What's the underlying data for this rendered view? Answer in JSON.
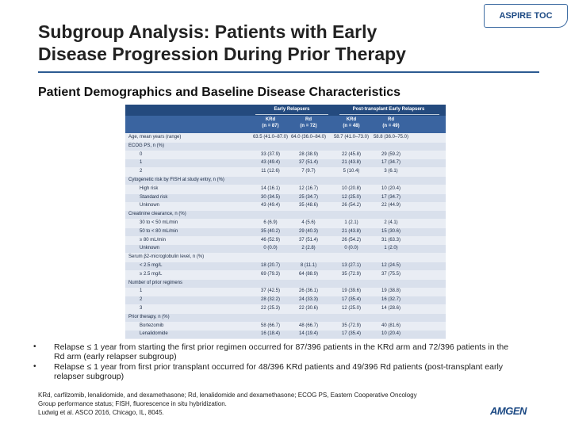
{
  "badge": "ASPIRE TOC",
  "title_line1": "Subgroup Analysis: Patients with Early",
  "title_line2": "Disease Progression During Prior Therapy",
  "subtitle": "Patient Demographics and Baseline Disease Characteristics",
  "table": {
    "group1": "Early Relapsers",
    "group2": "Post-transplant Early Relapsers",
    "columns": [
      {
        "arm": "KRd",
        "n": "(n = 87)"
      },
      {
        "arm": "Rd",
        "n": "(n = 72)"
      },
      {
        "arm": "KRd",
        "n": "(n = 48)"
      },
      {
        "arm": "Rd",
        "n": "(n = 49)"
      }
    ],
    "rows": [
      {
        "label": "Age, mean years (range)",
        "indent": false,
        "cells": [
          "63.5 (41.0–87.0)",
          "64.0 (36.0–84.0)",
          "58.7 (41.0–73.0)",
          "58.8 (36.0–75.0)"
        ]
      },
      {
        "label": "ECOG PS, n (%)",
        "indent": false,
        "cells": [
          "",
          "",
          "",
          ""
        ]
      },
      {
        "label": "0",
        "indent": true,
        "cells": [
          "33 (37.9)",
          "28 (38.9)",
          "22 (45.8)",
          "29 (59.2)"
        ]
      },
      {
        "label": "1",
        "indent": true,
        "cells": [
          "43 (49.4)",
          "37 (51.4)",
          "21 (43.8)",
          "17 (34.7)"
        ]
      },
      {
        "label": "2",
        "indent": true,
        "cells": [
          "11 (12.6)",
          "7 (9.7)",
          "5 (10.4)",
          "3 (6.1)"
        ]
      },
      {
        "label": "Cytogenetic risk by FISH at study entry, n (%)",
        "indent": false,
        "cells": [
          "",
          "",
          "",
          ""
        ]
      },
      {
        "label": "High risk",
        "indent": true,
        "cells": [
          "14 (16.1)",
          "12 (16.7)",
          "10 (20.8)",
          "10 (20.4)"
        ]
      },
      {
        "label": "Standard risk",
        "indent": true,
        "cells": [
          "30 (34.5)",
          "25 (34.7)",
          "12 (25.0)",
          "17 (34.7)"
        ]
      },
      {
        "label": "Unknown",
        "indent": true,
        "cells": [
          "43 (49.4)",
          "35 (48.6)",
          "26 (54.2)",
          "22 (44.9)"
        ]
      },
      {
        "label": "Creatinine clearance, n (%)",
        "indent": false,
        "cells": [
          "",
          "",
          "",
          ""
        ]
      },
      {
        "label": "30 to < 50 mL/min",
        "indent": true,
        "cells": [
          "6 (6.9)",
          "4 (5.6)",
          "1 (2.1)",
          "2 (4.1)"
        ]
      },
      {
        "label": "50 to < 80 mL/min",
        "indent": true,
        "cells": [
          "35 (40.2)",
          "29 (40.3)",
          "21 (43.8)",
          "15 (30.6)"
        ]
      },
      {
        "label": "≥ 80 mL/min",
        "indent": true,
        "cells": [
          "46 (52.9)",
          "37 (51.4)",
          "26 (54.2)",
          "31 (63.3)"
        ]
      },
      {
        "label": "Unknown",
        "indent": true,
        "cells": [
          "0 (0.0)",
          "2 (2.8)",
          "0 (0.0)",
          "1 (2.0)"
        ]
      },
      {
        "label": "Serum β2-microglobulin level, n (%)",
        "indent": false,
        "cells": [
          "",
          "",
          "",
          ""
        ]
      },
      {
        "label": "< 2.5 mg/L",
        "indent": true,
        "cells": [
          "18 (20.7)",
          "8 (11.1)",
          "13 (27.1)",
          "12 (24.5)"
        ]
      },
      {
        "label": "≥ 2.5 mg/L",
        "indent": true,
        "cells": [
          "69 (79.3)",
          "64 (88.9)",
          "35 (72.9)",
          "37 (75.5)"
        ]
      },
      {
        "label": "Number of prior regimens",
        "indent": false,
        "cells": [
          "",
          "",
          "",
          ""
        ]
      },
      {
        "label": "1",
        "indent": true,
        "cells": [
          "37 (42.5)",
          "26 (36.1)",
          "19 (39.6)",
          "19 (38.8)"
        ]
      },
      {
        "label": "2",
        "indent": true,
        "cells": [
          "28 (32.2)",
          "24 (33.3)",
          "17 (35.4)",
          "16 (32.7)"
        ]
      },
      {
        "label": "3",
        "indent": true,
        "cells": [
          "22 (25.3)",
          "22 (30.6)",
          "12 (25.0)",
          "14 (28.6)"
        ]
      },
      {
        "label": "Prior therapy, n (%)",
        "indent": false,
        "cells": [
          "",
          "",
          "",
          ""
        ]
      },
      {
        "label": "Bortezomib",
        "indent": true,
        "cells": [
          "58 (66.7)",
          "48 (66.7)",
          "35 (72.9)",
          "40 (81.6)"
        ]
      },
      {
        "label": "Lenalidomide",
        "indent": true,
        "cells": [
          "16 (18.4)",
          "14 (19.4)",
          "17 (35.4)",
          "10 (20.4)"
        ]
      }
    ]
  },
  "bullets": [
    "Relapse ≤ 1 year from starting the first prior regimen occurred for 87/396 patients in the KRd arm and 72/396 patients in the Rd arm (early relapser subgroup)",
    "Relapse ≤ 1 year from first prior transplant occurred for 48/396 KRd patients and 49/396 Rd patients (post-transplant early relapser subgroup)"
  ],
  "footnote_lines": [
    "KRd, carfilzomib, lenalidomide, and dexamethasone; Rd, lenalidomide and dexamethasone; ECOG PS, Eastern Cooperative Oncology",
    "Group performance status; FISH, fluorescence in situ hybridization.",
    "Ludwig et al. ASCO 2016, Chicago, IL, 8045."
  ],
  "logo_text": "AMGEN"
}
